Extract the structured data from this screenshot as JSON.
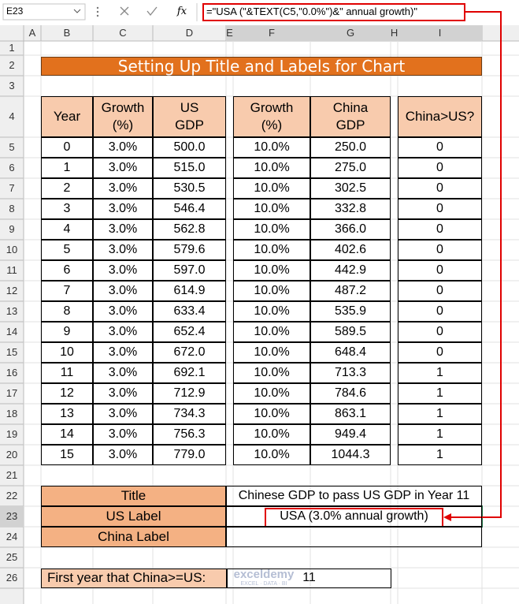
{
  "formula_bar": {
    "name_box": "E23",
    "fx_label": "fx",
    "formula": "=\"USA (\"&TEXT(C5,\"0.0%\")&\" annual growth)\""
  },
  "column_headers": [
    "A",
    "B",
    "C",
    "D",
    "E",
    "F",
    "G",
    "H",
    "I"
  ],
  "row_headers": [
    "1",
    "2",
    "3",
    "4",
    "5",
    "6",
    "7",
    "8",
    "9",
    "10",
    "11",
    "12",
    "13",
    "14",
    "15",
    "16",
    "17",
    "18",
    "19",
    "20",
    "21",
    "22",
    "23",
    "24",
    "25",
    "26"
  ],
  "title": "Setting Up Title and Labels for Chart",
  "table": {
    "header": [
      "Year",
      "Growth\n(%)",
      "US\nGDP",
      "Growth\n(%)",
      "China\nGDP",
      "China>US?"
    ],
    "rows": [
      [
        "0",
        "3.0%",
        "500.0",
        "10.0%",
        "250.0",
        "0"
      ],
      [
        "1",
        "3.0%",
        "515.0",
        "10.0%",
        "275.0",
        "0"
      ],
      [
        "2",
        "3.0%",
        "530.5",
        "10.0%",
        "302.5",
        "0"
      ],
      [
        "3",
        "3.0%",
        "546.4",
        "10.0%",
        "332.8",
        "0"
      ],
      [
        "4",
        "3.0%",
        "562.8",
        "10.0%",
        "366.0",
        "0"
      ],
      [
        "5",
        "3.0%",
        "579.6",
        "10.0%",
        "402.6",
        "0"
      ],
      [
        "6",
        "3.0%",
        "597.0",
        "10.0%",
        "442.9",
        "0"
      ],
      [
        "7",
        "3.0%",
        "614.9",
        "10.0%",
        "487.2",
        "0"
      ],
      [
        "8",
        "3.0%",
        "633.4",
        "10.0%",
        "535.9",
        "0"
      ],
      [
        "9",
        "3.0%",
        "652.4",
        "10.0%",
        "589.5",
        "0"
      ],
      [
        "10",
        "3.0%",
        "672.0",
        "10.0%",
        "648.4",
        "0"
      ],
      [
        "11",
        "3.0%",
        "692.1",
        "10.0%",
        "713.3",
        "1"
      ],
      [
        "12",
        "3.0%",
        "712.9",
        "10.0%",
        "784.6",
        "1"
      ],
      [
        "13",
        "3.0%",
        "734.3",
        "10.0%",
        "863.1",
        "1"
      ],
      [
        "14",
        "3.0%",
        "756.3",
        "10.0%",
        "949.4",
        "1"
      ],
      [
        "15",
        "3.0%",
        "779.0",
        "10.0%",
        "1044.3",
        "1"
      ]
    ]
  },
  "summary": [
    {
      "label": "Title",
      "value": "Chinese GDP to pass US GDP in Year 11"
    },
    {
      "label": "US Label",
      "value": "USA (3.0% annual growth)"
    },
    {
      "label": "China Label"
    }
  ],
  "first_year": {
    "label": "First year that China>=US:",
    "value": "11"
  },
  "watermark": {
    "name": "exceldemy",
    "tagline": "EXCEL · DATA · BI"
  }
}
